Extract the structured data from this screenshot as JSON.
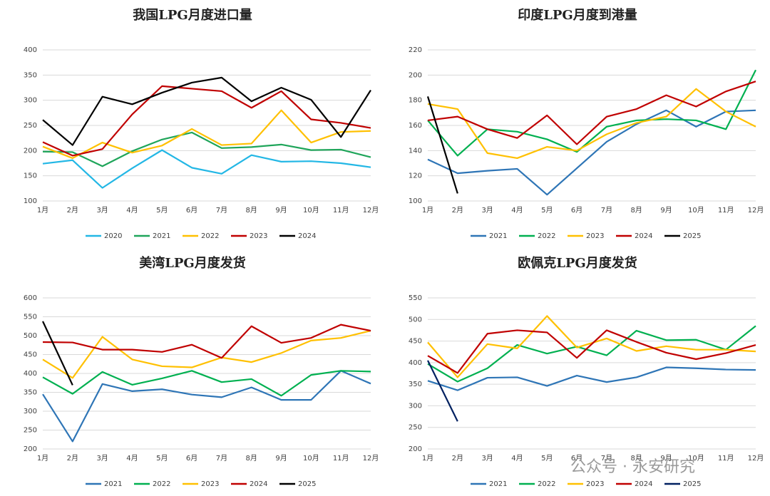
{
  "chart_data": [
    {
      "type": "line",
      "title": "我国LPG月度进口量",
      "categories": [
        "1月",
        "2月",
        "3月",
        "4月",
        "5月",
        "6月",
        "7月",
        "8月",
        "9月",
        "10月",
        "11月",
        "12月"
      ],
      "ylim": [
        100,
        400
      ],
      "yticks": [
        100,
        150,
        200,
        250,
        300,
        350,
        400
      ],
      "grid": true,
      "series": [
        {
          "name": "2020",
          "color": "#23b7e5",
          "values": [
            174,
            181,
            126,
            165,
            201,
            166,
            154,
            191,
            178,
            179,
            175,
            167
          ]
        },
        {
          "name": "2021",
          "color": "#1fa55a",
          "values": [
            198,
            197,
            169,
            199,
            222,
            236,
            205,
            207,
            212,
            201,
            202,
            187
          ]
        },
        {
          "name": "2022",
          "color": "#ffc000",
          "values": [
            208,
            185,
            216,
            196,
            210,
            243,
            211,
            214,
            280,
            216,
            237,
            239
          ]
        },
        {
          "name": "2023",
          "color": "#c00000",
          "values": [
            217,
            190,
            203,
            272,
            328,
            323,
            318,
            285,
            318,
            262,
            255,
            245
          ]
        },
        {
          "name": "2024",
          "color": "#000000",
          "values": [
            261,
            211,
            307,
            292,
            315,
            335,
            345,
            298,
            325,
            301,
            227,
            320
          ]
        }
      ]
    },
    {
      "type": "line",
      "title": "印度LPG月度到港量",
      "categories": [
        "1月",
        "2月",
        "3月",
        "4月",
        "5月",
        "6月",
        "7月",
        "8月",
        "9月",
        "10月",
        "11月",
        "12月"
      ],
      "ylim": [
        100,
        220
      ],
      "yticks": [
        100,
        120,
        140,
        160,
        180,
        200,
        220
      ],
      "grid": true,
      "series": [
        {
          "name": "2021",
          "color": "#2e75b6",
          "values": [
            133,
            122,
            124,
            125.5,
            105,
            126,
            147,
            161,
            172,
            159,
            171,
            172
          ]
        },
        {
          "name": "2022",
          "color": "#00b050",
          "values": [
            164,
            136,
            157,
            155,
            149,
            139,
            159,
            164,
            165,
            164,
            157,
            204
          ]
        },
        {
          "name": "2023",
          "color": "#ffc000",
          "values": [
            177,
            173,
            138,
            134,
            143,
            140,
            153,
            162,
            167,
            189,
            171,
            159
          ]
        },
        {
          "name": "2024",
          "color": "#c00000",
          "values": [
            164,
            167,
            157,
            150,
            168,
            145,
            167,
            173,
            184,
            175,
            187,
            195
          ]
        },
        {
          "name": "2025",
          "color": "#000000",
          "values": [
            183,
            106,
            null,
            null,
            null,
            null,
            null,
            null,
            null,
            null,
            null,
            null
          ]
        }
      ]
    },
    {
      "type": "line",
      "title": "美湾LPG月度发货",
      "categories": [
        "1月",
        "2月",
        "3月",
        "4月",
        "5月",
        "6月",
        "7月",
        "8月",
        "9月",
        "10月",
        "11月",
        "12月"
      ],
      "ylim": [
        200,
        600
      ],
      "yticks": [
        200,
        250,
        300,
        350,
        400,
        450,
        500,
        550,
        600
      ],
      "grid": true,
      "series": [
        {
          "name": "2021",
          "color": "#2e75b6",
          "values": [
            345,
            220,
            372,
            353,
            358,
            344,
            337,
            363,
            330,
            330,
            407,
            373
          ]
        },
        {
          "name": "2022",
          "color": "#00b050",
          "values": [
            390,
            346,
            404,
            370,
            387,
            407,
            377,
            385,
            341,
            396,
            407,
            405
          ]
        },
        {
          "name": "2023",
          "color": "#ffc000",
          "values": [
            437,
            388,
            497,
            437,
            419,
            416,
            442,
            430,
            454,
            487,
            494,
            513
          ]
        },
        {
          "name": "2024",
          "color": "#c00000",
          "values": [
            483,
            482,
            463,
            463,
            457,
            476,
            441,
            525,
            481,
            494,
            529,
            513
          ]
        },
        {
          "name": "2025",
          "color": "#000000",
          "values": [
            538,
            369,
            null,
            null,
            null,
            null,
            null,
            null,
            null,
            null,
            null,
            null
          ]
        }
      ]
    },
    {
      "type": "line",
      "title": "欧佩克LPG月度发货",
      "categories": [
        "1月",
        "2月",
        "3月",
        "4月",
        "5月",
        "6月",
        "7月",
        "8月",
        "9月",
        "10月",
        "11月",
        "12月"
      ],
      "ylim": [
        200,
        550
      ],
      "yticks": [
        200,
        250,
        300,
        350,
        400,
        450,
        500,
        550
      ],
      "grid": true,
      "series": [
        {
          "name": "2021",
          "color": "#2e75b6",
          "values": [
            358,
            336,
            365,
            366,
            346,
            370,
            355,
            366,
            389,
            387,
            384,
            383
          ]
        },
        {
          "name": "2022",
          "color": "#00b050",
          "values": [
            397,
            356,
            387,
            441,
            421,
            437,
            417,
            474,
            452,
            453,
            430,
            485
          ]
        },
        {
          "name": "2023",
          "color": "#ffc000",
          "values": [
            447,
            366,
            443,
            433,
            508,
            435,
            456,
            427,
            438,
            430,
            430,
            426
          ]
        },
        {
          "name": "2024",
          "color": "#c00000",
          "values": [
            416,
            376,
            467,
            475,
            470,
            411,
            475,
            448,
            423,
            408,
            422,
            441
          ]
        },
        {
          "name": "2025",
          "color": "#002060",
          "values": [
            405,
            264,
            null,
            null,
            null,
            null,
            null,
            null,
            null,
            null,
            null,
            null
          ]
        }
      ]
    }
  ],
  "watermark": "公众号 · 永安研究"
}
